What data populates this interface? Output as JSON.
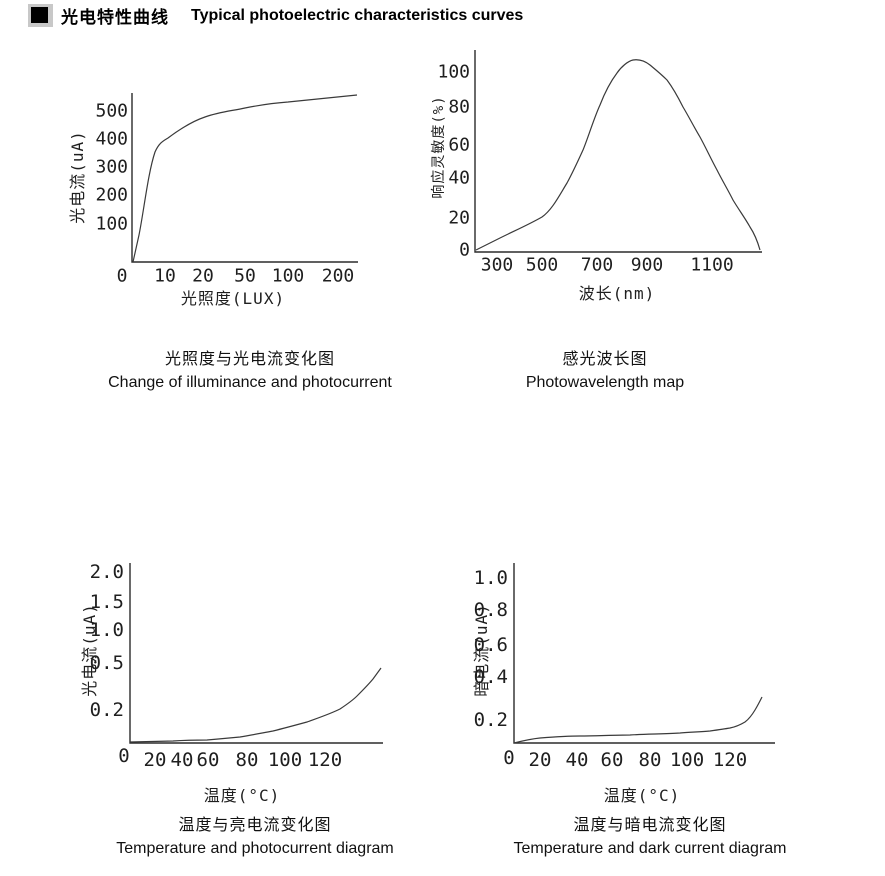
{
  "header": {
    "bullet_icon": "black-square-bullet",
    "title_zh": "光电特性曲线",
    "title_en": "Typical photoelectric characteristics curves"
  },
  "colors": {
    "background": "#ffffff",
    "axis": "#2b2b2b",
    "curve": "#3a3a3a",
    "text": "#000000",
    "bullet_highlight": "#c8c8c8"
  },
  "chart_data": [
    {
      "id": "illuminance-vs-photocurrent",
      "type": "line",
      "title_zh": "光照度与光电流变化图",
      "title_en": "Change of illuminance and photocurrent",
      "xlabel": "光照度(LUX)",
      "ylabel": "光电流(uA)",
      "x_ticks": [
        "0",
        "10",
        "20",
        "50",
        "100",
        "200"
      ],
      "y_ticks": [
        "500",
        "400",
        "300",
        "200",
        "100"
      ],
      "xlim": [
        0,
        250
      ],
      "ylim": [
        0,
        560
      ],
      "x_scale": "compressed log-like",
      "grid": false,
      "points": [
        [
          0,
          0
        ],
        [
          5,
          200
        ],
        [
          10,
          390
        ],
        [
          20,
          460
        ],
        [
          50,
          505
        ],
        [
          100,
          530
        ],
        [
          200,
          550
        ],
        [
          250,
          560
        ]
      ]
    },
    {
      "id": "spectral-response",
      "type": "line",
      "title_zh": "感光波长图",
      "title_en": "Photowavelength map",
      "xlabel": "波长(nm)",
      "ylabel": "响应灵敏度(%)",
      "x_ticks": [
        "300",
        "500",
        "700",
        "900",
        "1100"
      ],
      "y_ticks": [
        "100",
        "80",
        "60",
        "40",
        "20",
        "0"
      ],
      "xlim": [
        260,
        1280
      ],
      "ylim": [
        0,
        110
      ],
      "grid": false,
      "points": [
        [
          300,
          2
        ],
        [
          400,
          9
        ],
        [
          500,
          20
        ],
        [
          550,
          31
        ],
        [
          600,
          47
        ],
        [
          650,
          64
        ],
        [
          700,
          80
        ],
        [
          750,
          95
        ],
        [
          800,
          104
        ],
        [
          840,
          107
        ],
        [
          900,
          102
        ],
        [
          950,
          92
        ],
        [
          1000,
          79
        ],
        [
          1050,
          64
        ],
        [
          1100,
          48
        ],
        [
          1150,
          32
        ],
        [
          1200,
          16
        ],
        [
          1260,
          0
        ]
      ]
    },
    {
      "id": "temperature-vs-photocurrent",
      "type": "line",
      "title_zh": "温度与亮电流变化图",
      "title_en": "Temperature and photocurrent diagram",
      "xlabel": "温度(°C)",
      "ylabel": "光电流(uA)",
      "x_ticks": [
        "0",
        "20",
        "40",
        "60",
        "80",
        "100",
        "120"
      ],
      "y_ticks": [
        "2.0",
        "1.5",
        "1.0",
        "0.5",
        "0.2"
      ],
      "xlim": [
        0,
        145
      ],
      "ylim": [
        0,
        2.0
      ],
      "y_scale": "non-linear tick spacing",
      "grid": false,
      "points": [
        [
          0,
          0
        ],
        [
          20,
          0.005
        ],
        [
          40,
          0.01
        ],
        [
          60,
          0.03
        ],
        [
          80,
          0.05
        ],
        [
          100,
          0.1
        ],
        [
          120,
          0.17
        ],
        [
          135,
          0.3
        ],
        [
          145,
          0.46
        ]
      ]
    },
    {
      "id": "temperature-vs-dark-current",
      "type": "line",
      "title_zh": "温度与暗电流变化图",
      "title_en": "Temperature and dark current diagram",
      "xlabel": "温度(°C)",
      "ylabel": "暗电流(uA)",
      "x_ticks": [
        "0",
        "20",
        "40",
        "60",
        "80",
        "100",
        "120"
      ],
      "y_ticks": [
        "1.0",
        "0.8",
        "0.6",
        "0.4",
        "0.2"
      ],
      "xlim": [
        0,
        140
      ],
      "ylim": [
        0,
        1.0
      ],
      "grid": false,
      "points": [
        [
          0,
          0
        ],
        [
          10,
          0.04
        ],
        [
          40,
          0.06
        ],
        [
          80,
          0.08
        ],
        [
          100,
          0.09
        ],
        [
          115,
          0.11
        ],
        [
          125,
          0.15
        ],
        [
          130,
          0.2
        ],
        [
          135,
          0.3
        ]
      ]
    }
  ]
}
